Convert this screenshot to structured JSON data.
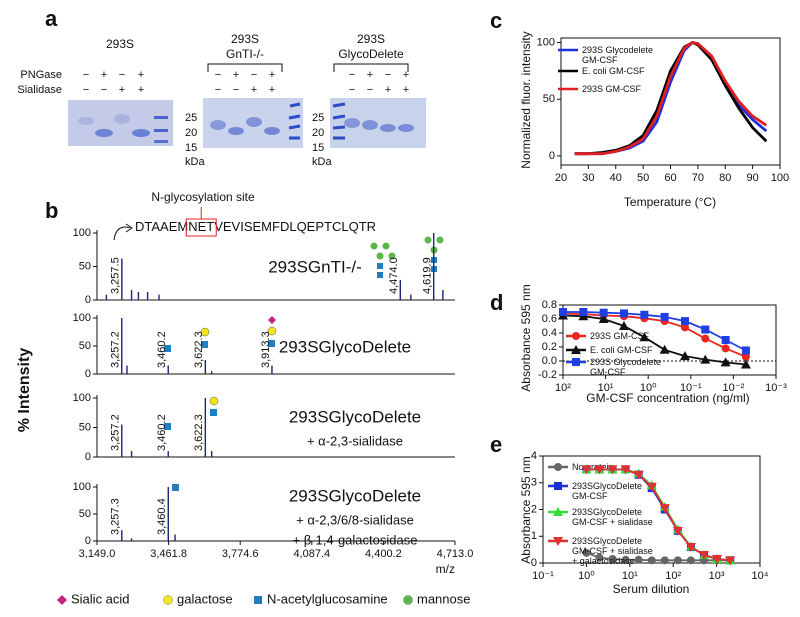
{
  "panel_a": {
    "label": "a",
    "rows": [
      "PNGase",
      "Sialidase"
    ],
    "gels": [
      {
        "title": [
          "293S"
        ],
        "signs": [
          [
            "−",
            "+",
            "−",
            "+"
          ],
          [
            "−",
            "−",
            "+",
            "+"
          ]
        ],
        "markers": [
          "25",
          "20",
          "15"
        ],
        "unit": "kDa"
      },
      {
        "title": [
          "293S",
          "GnTI-/-"
        ],
        "signs": [
          [
            "−",
            "+",
            "−",
            "+"
          ],
          [
            "−",
            "−",
            "+",
            "+"
          ]
        ],
        "markers": [
          "25",
          "20",
          "15"
        ],
        "unit": "kDa"
      },
      {
        "title": [
          "293S",
          "GlycoDelete"
        ],
        "signs": [
          [
            "−",
            "+",
            "−",
            "+"
          ],
          [
            "−",
            "−",
            "+",
            "+"
          ]
        ]
      }
    ]
  },
  "panel_b": {
    "label": "b",
    "ylabel": "% Intensity",
    "site_label": "N-glycosylation site",
    "peptide": [
      "DTAAEM",
      "NET",
      "VEVISEMFDLQEPTCLQTR"
    ],
    "legend": [
      {
        "name": "Sialic acid",
        "color": "#c0267f"
      },
      {
        "name": "galactose",
        "color": "#f5e51c"
      },
      {
        "name": "N-acetylglucosamine",
        "color": "#1f7fc0"
      },
      {
        "name": "mannose",
        "color": "#58b947"
      }
    ]
  },
  "chart_data": [
    {
      "type": "spectrum",
      "sample": [
        "293SGnTI-/-"
      ],
      "color": "#1a237e",
      "x": [
        3190,
        3257.5,
        3300,
        3330,
        3370,
        3420,
        4474.0,
        4520,
        4619.9,
        4660
      ],
      "values": [
        8,
        62,
        15,
        12,
        12,
        8,
        30,
        8,
        100,
        15
      ],
      "peak_labels": [
        null,
        "3,257.5",
        null,
        null,
        null,
        null,
        "4,474.0",
        null,
        "4,619.9",
        null
      ],
      "xlim": [
        3149.0,
        4713.0
      ],
      "ylim": [
        0,
        100
      ],
      "yticks": [
        0,
        50,
        100
      ]
    },
    {
      "type": "spectrum",
      "sample": [
        "293SGlycoDelete"
      ],
      "color": "#1a237e",
      "x": [
        3257.2,
        3280,
        3460.2,
        3622.3,
        3650,
        3913.3
      ],
      "values": [
        100,
        15,
        15,
        25,
        5,
        15
      ],
      "peak_labels": [
        "3,257.2",
        null,
        "3,460.2",
        "3,622.3",
        null,
        "3,913.3"
      ],
      "xlim": [
        3149.0,
        4713.0
      ],
      "ylim": [
        0,
        100
      ],
      "yticks": [
        0,
        50,
        100
      ]
    },
    {
      "type": "spectrum",
      "sample": [
        "293SGlycoDelete",
        "+ α-2,3-sialidase"
      ],
      "color": "#1a237e",
      "x": [
        3257.2,
        3300,
        3460.2,
        3622.3,
        3650
      ],
      "values": [
        55,
        10,
        10,
        100,
        10
      ],
      "peak_labels": [
        "3,257.2",
        null,
        "3,460.2",
        "3,622.3",
        null
      ],
      "xlim": [
        3149.0,
        4713.0
      ],
      "ylim": [
        0,
        100
      ],
      "yticks": [
        0,
        50,
        100
      ]
    },
    {
      "type": "spectrum",
      "sample": [
        "293SGlycoDelete",
        "+ α-2,3/6/8-sialidase",
        "+ β-1,4-galactosidase"
      ],
      "color": "#1a237e",
      "x": [
        3257.3,
        3300,
        3460.4,
        3490
      ],
      "values": [
        20,
        5,
        100,
        12
      ],
      "peak_labels": [
        "3,257.3",
        null,
        "3,460.4",
        null
      ],
      "xlim": [
        3149.0,
        4713.0
      ],
      "ylim": [
        0,
        100
      ],
      "yticks": [
        0,
        50,
        100
      ],
      "xticks": [
        {
          "value": 3149.0,
          "label": "3,149.0"
        },
        {
          "value": 3461.8,
          "label": "3,461.8"
        },
        {
          "value": 3774.6,
          "label": "3,774.6"
        },
        {
          "value": 4087.4,
          "label": "4,087.4"
        },
        {
          "value": 4400.2,
          "label": "4,400.2"
        },
        {
          "value": 4713.0,
          "label": "4,713.0"
        }
      ],
      "xlabel": "m/z"
    },
    {
      "type": "line",
      "label": "c",
      "xlabel": "Temperature (°C)",
      "ylabel": "Normalized fluor. intensity",
      "x": [
        25,
        30,
        35,
        40,
        45,
        50,
        55,
        60,
        65,
        68,
        70,
        75,
        80,
        85,
        90,
        95
      ],
      "series": [
        {
          "name": "293S Glycodelete GM-CSF",
          "color": "#1f2fe0",
          "values": [
            2,
            2,
            2,
            4,
            7,
            13,
            30,
            65,
            93,
            100,
            99,
            88,
            65,
            45,
            32,
            22
          ]
        },
        {
          "name": "E. coli GM-CSF",
          "color": "#000000",
          "values": [
            2,
            2,
            3,
            5,
            9,
            18,
            40,
            75,
            96,
            100,
            98,
            85,
            62,
            42,
            25,
            13
          ]
        },
        {
          "name": "293S GM-CSF",
          "color": "#e02020",
          "values": [
            2,
            2,
            2,
            4,
            8,
            15,
            35,
            70,
            95,
            100,
            99,
            88,
            66,
            48,
            35,
            27
          ]
        }
      ],
      "xlim": [
        20,
        100
      ],
      "xticks": [
        20,
        30,
        40,
        50,
        60,
        70,
        80,
        90,
        100
      ],
      "ylim": [
        -8,
        104
      ],
      "yticks": [
        0,
        50,
        100
      ]
    },
    {
      "type": "line",
      "label": "d",
      "xlabel": "GM-CSF concentration (ng/ml)",
      "ylabel": "Absorbance 595 nm",
      "xscale": "log",
      "x": [
        100,
        33.3,
        11.1,
        3.7,
        1.23,
        0.412,
        0.137,
        0.0457,
        0.0152,
        0.00508
      ],
      "series": [
        {
          "name": "293S GM-CSF",
          "color": "#e8261f",
          "marker": "circle",
          "values": [
            0.68,
            0.67,
            0.65,
            0.64,
            0.61,
            0.57,
            0.48,
            0.32,
            0.18,
            0.06
          ]
        },
        {
          "name": "E. coli GM-CSF",
          "color": "#111111",
          "marker": "triangle",
          "values": [
            0.65,
            0.64,
            0.6,
            0.5,
            0.34,
            0.16,
            0.07,
            0.02,
            -0.02,
            -0.05
          ]
        },
        {
          "name": "293S Glycodelete GM-CSF",
          "color": "#1f3fe0",
          "marker": "square",
          "values": [
            0.7,
            0.7,
            0.69,
            0.68,
            0.66,
            0.63,
            0.57,
            0.45,
            0.3,
            0.15
          ]
        }
      ],
      "reference_line": 0,
      "xlim": [
        100,
        0.001
      ],
      "xticks": [
        {
          "value": 100,
          "label": "10²"
        },
        {
          "value": 10,
          "label": "10¹"
        },
        {
          "value": 1,
          "label": "10⁰"
        },
        {
          "value": 0.1,
          "label": "10⁻¹"
        },
        {
          "value": 0.01,
          "label": "10⁻²"
        },
        {
          "value": 0.001,
          "label": "10⁻³"
        }
      ],
      "ylim": [
        -0.2,
        0.8
      ],
      "yticks": [
        -0.2,
        {
          "value": 0,
          "label": "0.0"
        },
        0.2,
        0.4,
        0.6,
        0.8
      ]
    },
    {
      "type": "line",
      "label": "e",
      "xlabel": "Serum dilution",
      "ylabel": "Absorbance 595 nm",
      "xscale": "log",
      "x": [
        1,
        2,
        4,
        8,
        16,
        32,
        64,
        128,
        256,
        512,
        1024,
        2048
      ],
      "series": [
        {
          "name": "No protein",
          "color": "#666666",
          "marker": "circle",
          "values": [
            0.38,
            0.2,
            0.15,
            0.12,
            0.12,
            0.1,
            0.1,
            0.1,
            0.1,
            0.1,
            0.1,
            0.1
          ]
        },
        {
          "name": "293SGlycoDelete GM-CSF",
          "color": "#1a2ee0",
          "marker": "square",
          "values": [
            3.5,
            3.5,
            3.5,
            3.5,
            3.3,
            2.8,
            2.0,
            1.2,
            0.6,
            0.3,
            0.15,
            0.1
          ]
        },
        {
          "name": "293SGlycoDelete GM-CSF + sialidase",
          "color": "#33dd33",
          "marker": "triangle",
          "values": [
            3.5,
            3.5,
            3.5,
            3.5,
            3.35,
            2.9,
            2.1,
            1.25,
            0.62,
            0.3,
            0.15,
            0.1
          ]
        },
        {
          "name": "293SGlycoDelete GM-CSF + sialidase + galactosidase",
          "color": "#e03030",
          "marker": "triangle-down",
          "values": [
            3.5,
            3.5,
            3.5,
            3.5,
            3.3,
            2.85,
            2.05,
            1.2,
            0.6,
            0.3,
            0.15,
            0.1
          ]
        }
      ],
      "xlim": [
        0.1,
        10000
      ],
      "xticks": [
        {
          "value": 0.1,
          "label": "10⁻¹"
        },
        {
          "value": 1,
          "label": "10⁰"
        },
        {
          "value": 10,
          "label": "10¹"
        },
        {
          "value": 100,
          "label": "10²"
        },
        {
          "value": 1000,
          "label": "10³"
        },
        {
          "value": 10000,
          "label": "10⁴"
        }
      ],
      "ylim": [
        0,
        4
      ],
      "yticks": [
        0,
        1,
        2,
        3,
        4
      ]
    }
  ]
}
